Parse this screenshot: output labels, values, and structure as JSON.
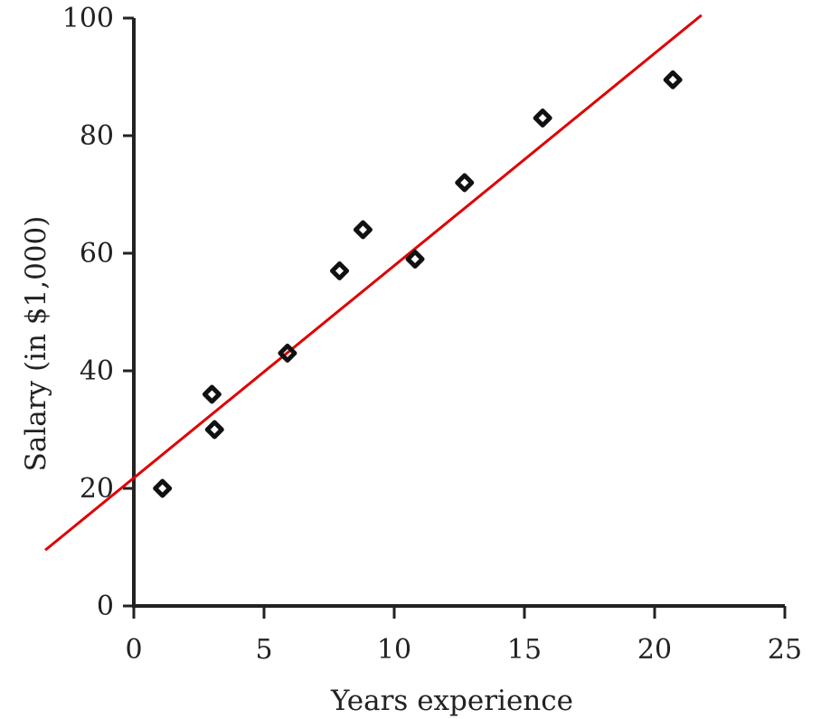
{
  "chart_data": {
    "type": "scatter",
    "title": "",
    "xlabel": "Years experience",
    "ylabel": "Salary (in $1,000)",
    "xlim": [
      0,
      25
    ],
    "ylim": [
      0,
      100
    ],
    "xticks": [
      0,
      5,
      10,
      15,
      20,
      25
    ],
    "yticks": [
      0,
      20,
      40,
      60,
      80,
      100
    ],
    "grid": false,
    "series": [
      {
        "values": [
          {
            "x": 1.1,
            "y": 20
          },
          {
            "x": 3.0,
            "y": 36
          },
          {
            "x": 3.1,
            "y": 30
          },
          {
            "x": 5.9,
            "y": 43
          },
          {
            "x": 7.9,
            "y": 57
          },
          {
            "x": 8.8,
            "y": 64
          },
          {
            "x": 10.8,
            "y": 59
          },
          {
            "x": 12.7,
            "y": 72
          },
          {
            "x": 15.7,
            "y": 83
          },
          {
            "x": 20.7,
            "y": 89.5
          }
        ],
        "color": "#000000"
      }
    ],
    "trendline": {
      "color": "#e00000",
      "from": {
        "x": -3.4,
        "y": 9.5
      },
      "to": {
        "x": 21.8,
        "y": 100.5
      }
    }
  }
}
